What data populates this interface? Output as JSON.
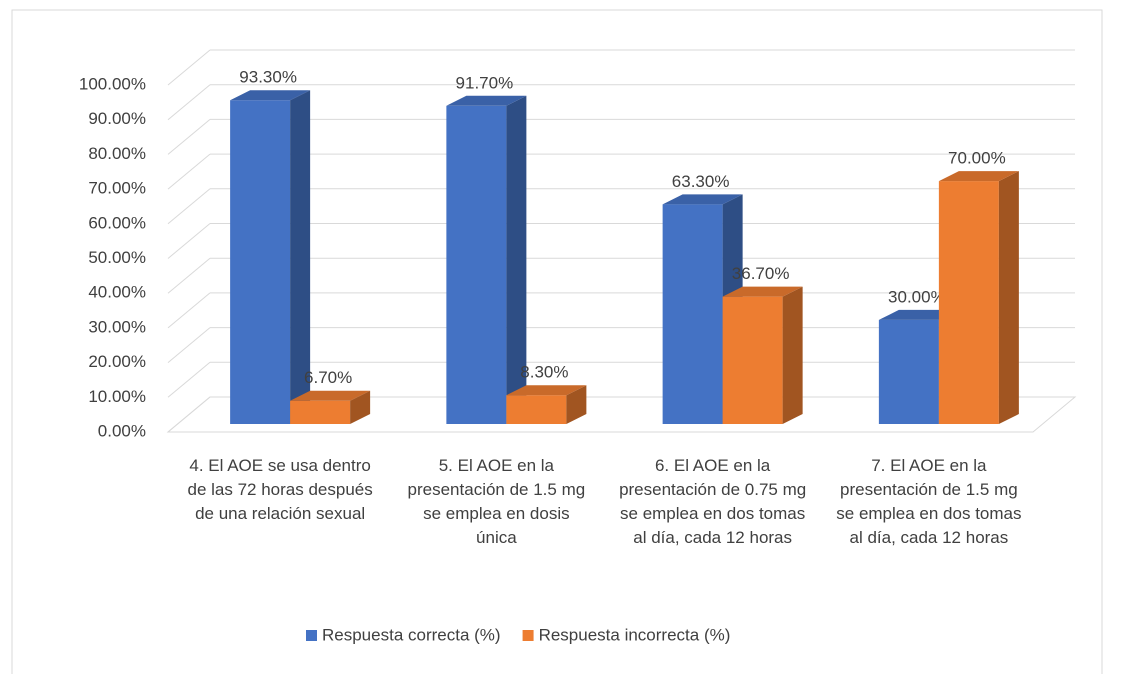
{
  "chart_data": {
    "type": "bar3d",
    "categories": [
      "4.  El AOE se usa dentro de las 72 horas después de una relación sexual",
      "5. El AOE en la presentación de 1.5 mg se emplea en dosis única",
      "6. El AOE en la presentación de 0.75 mg se emplea en dos tomas al día, cada 12 horas",
      "7. El AOE en la presentación de 1.5 mg se emplea en dos tomas al día, cada 12 horas"
    ],
    "series": [
      {
        "name": "Respuesta correcta (%)",
        "color": "#4472c4",
        "values": [
          93.3,
          91.7,
          63.3,
          30.0
        ],
        "value_labels": [
          "93.30%",
          "91.70%",
          "63.30%",
          "30.00%"
        ]
      },
      {
        "name": "Respuesta incorrecta (%)",
        "color": "#ed7d31",
        "values": [
          6.7,
          8.3,
          36.7,
          70.0
        ],
        "value_labels": [
          "6.70%",
          "8.30%",
          "36.70%",
          "70.00%"
        ]
      }
    ],
    "ylim": [
      0,
      100
    ],
    "yticks": [
      {
        "value": 0,
        "label": "0.00%"
      },
      {
        "value": 10,
        "label": "10.00%"
      },
      {
        "value": 20,
        "label": "20.00%"
      },
      {
        "value": 30,
        "label": "30.00%"
      },
      {
        "value": 40,
        "label": "40.00%"
      },
      {
        "value": 50,
        "label": "50.00%"
      },
      {
        "value": 60,
        "label": "60.00%"
      },
      {
        "value": 70,
        "label": "70.00%"
      },
      {
        "value": 80,
        "label": "80.00%"
      },
      {
        "value": 90,
        "label": "90.00%"
      },
      {
        "value": 100,
        "label": "100.00%"
      }
    ],
    "grid": true,
    "legend": "bottom"
  }
}
